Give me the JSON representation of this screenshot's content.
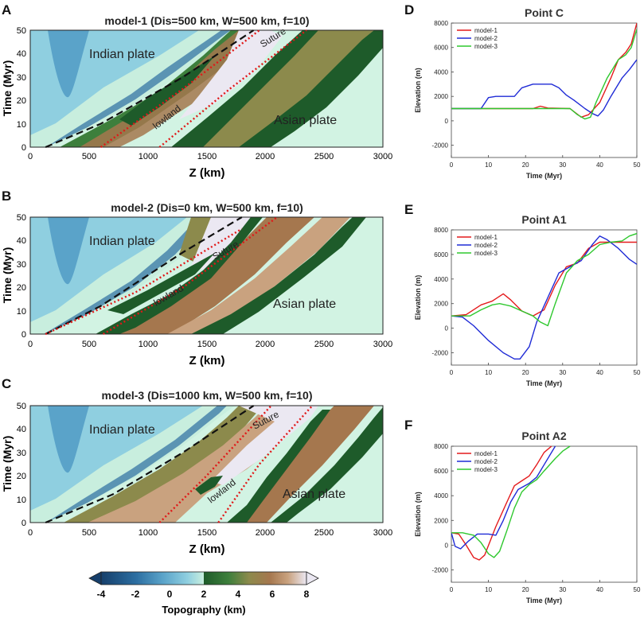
{
  "colors": {
    "deep_blue": "#2c6ea1",
    "mid_blue": "#5aa3c9",
    "light_blue": "#8fcfe0",
    "pale": "#c8eede",
    "land_pale": "#d2f3e3",
    "dark_green": "#1e5b2a",
    "green": "#3d7f3c",
    "olive": "#8c8a4c",
    "brown": "#a5774e",
    "tan": "#c9a27f",
    "snow": "#ebe8f2",
    "red_line": "#e01818",
    "black_line": "#111111",
    "series_red": "#e41a1c",
    "series_blue": "#1f2bd6",
    "series_green": "#2ec82e"
  },
  "maps": [
    {
      "letter": "A",
      "title": "model-1 (Dis=500 km, W=500 km, f=10)",
      "labels": {
        "indian": "Indian plate",
        "asian": "Asian plate",
        "suture": "Suture",
        "lowland": "lowland"
      },
      "xlabel": "Z  (km)",
      "ylabel": "Time  (Myr)",
      "xticks": [
        "0",
        "500",
        "1000",
        "1500",
        "2000",
        "2500",
        "3000"
      ],
      "yticks": [
        "0",
        "10",
        "20",
        "30",
        "40",
        "50"
      ]
    },
    {
      "letter": "B",
      "title": "model-2 (Dis=0 km, W=500 km, f=10)",
      "labels": {
        "indian": "Indian plate",
        "asian": "Asian plate",
        "suture": "Suture",
        "lowland": "lowland"
      },
      "xlabel": "Z  (km)",
      "ylabel": "Time  (Myr)",
      "xticks": [
        "0",
        "500",
        "1000",
        "1500",
        "2000",
        "2500",
        "3000"
      ],
      "yticks": [
        "0",
        "10",
        "20",
        "30",
        "40",
        "50"
      ]
    },
    {
      "letter": "C",
      "title": "model-3 (Dis=1000 km, W=500 km, f=10)",
      "labels": {
        "indian": "Indian plate",
        "asian": "Asian plate",
        "suture": "Suture",
        "lowland": "lowland"
      },
      "xlabel": "Z  (km)",
      "ylabel": "Time  (Myr)",
      "xticks": [
        "0",
        "500",
        "1000",
        "1500",
        "2000",
        "2500",
        "3000"
      ],
      "yticks": [
        "0",
        "10",
        "20",
        "30",
        "40",
        "50"
      ]
    }
  ],
  "colorbar": {
    "label": "Topography (km)",
    "ticks": [
      "-4",
      "-2",
      "0",
      "2",
      "4",
      "6",
      "8"
    ]
  },
  "chart_data": [
    {
      "panel": "A",
      "type": "heatmap",
      "title": "model-1 (Dis=500 km, W=500 km, f=10)",
      "xlabel": "Z  (km)",
      "ylabel": "Time  (Myr)",
      "xlim": [
        0,
        3000
      ],
      "ylim": [
        0,
        50
      ],
      "colorbar": {
        "label": "Topography (km)",
        "range": [
          -4,
          8
        ]
      },
      "boundaries": {
        "suture": [
          [
            130,
            0
          ],
          [
            600,
            10
          ],
          [
            1300,
            30
          ],
          [
            1900,
            50
          ]
        ],
        "red_left": [
          [
            600,
            0
          ],
          [
            1300,
            25
          ],
          [
            1950,
            50
          ]
        ],
        "red_right": [
          [
            1100,
            0
          ],
          [
            1700,
            25
          ],
          [
            2350,
            50
          ]
        ]
      }
    },
    {
      "panel": "B",
      "type": "heatmap",
      "title": "model-2 (Dis=0 km, W=500 km, f=10)",
      "xlabel": "Z  (km)",
      "ylabel": "Time  (Myr)",
      "xlim": [
        0,
        3000
      ],
      "ylim": [
        0,
        50
      ],
      "colorbar": {
        "label": "Topography (km)",
        "range": [
          -4,
          8
        ]
      },
      "boundaries": {
        "suture": [
          [
            130,
            0
          ],
          [
            600,
            12
          ],
          [
            1300,
            35
          ],
          [
            1800,
            50
          ]
        ],
        "red_left": [
          [
            130,
            0
          ],
          [
            900,
            18
          ],
          [
            1800,
            45
          ]
        ],
        "red_right": [
          [
            620,
            0
          ],
          [
            1300,
            20
          ],
          [
            2100,
            50
          ]
        ]
      }
    },
    {
      "panel": "C",
      "type": "heatmap",
      "title": "model-3 (Dis=1000 km, W=500 km, f=10)",
      "xlabel": "Z  (km)",
      "ylabel": "Time  (Myr)",
      "xlim": [
        0,
        3000
      ],
      "ylim": [
        0,
        50
      ],
      "colorbar": {
        "label": "Topography (km)",
        "range": [
          -4,
          8
        ]
      },
      "boundaries": {
        "suture": [
          [
            130,
            0
          ],
          [
            700,
            12
          ],
          [
            1300,
            30
          ],
          [
            1900,
            50
          ]
        ],
        "red_left": [
          [
            1100,
            0
          ],
          [
            1500,
            20
          ],
          [
            2050,
            50
          ]
        ],
        "red_right": [
          [
            1600,
            0
          ],
          [
            1950,
            25
          ],
          [
            2400,
            50
          ]
        ]
      }
    },
    {
      "panel": "D",
      "type": "line",
      "title": "Point C",
      "xlabel": "Time (Myr)",
      "ylabel": "Elevation (m)",
      "xlim": [
        0,
        50
      ],
      "ylim": [
        -3000,
        8000
      ],
      "xticks": [
        0,
        10,
        20,
        30,
        40,
        50
      ],
      "yticks": [
        -2000,
        0,
        2000,
        4000,
        6000,
        8000
      ],
      "series": [
        {
          "name": "model-1",
          "color": "#e41a1c",
          "points": [
            [
              0,
              1000
            ],
            [
              22,
              1000
            ],
            [
              24,
              1200
            ],
            [
              26,
              1050
            ],
            [
              32,
              1000
            ],
            [
              35,
              300
            ],
            [
              37,
              500
            ],
            [
              40,
              1500
            ],
            [
              43,
              3500
            ],
            [
              45,
              5000
            ],
            [
              47,
              5600
            ],
            [
              48.5,
              6300
            ],
            [
              50,
              8000
            ]
          ]
        },
        {
          "name": "model-2",
          "color": "#1f2bd6",
          "points": [
            [
              0,
              1000
            ],
            [
              8,
              1000
            ],
            [
              10,
              1900
            ],
            [
              12,
              2000
            ],
            [
              17,
              2000
            ],
            [
              19,
              2700
            ],
            [
              22,
              3000
            ],
            [
              27,
              3000
            ],
            [
              29,
              2700
            ],
            [
              31,
              2100
            ],
            [
              33,
              1700
            ],
            [
              36,
              1000
            ],
            [
              38,
              600
            ],
            [
              39.5,
              400
            ],
            [
              41,
              900
            ],
            [
              43,
              2000
            ],
            [
              46,
              3500
            ],
            [
              48,
              4200
            ],
            [
              50,
              5000
            ]
          ]
        },
        {
          "name": "model-3",
          "color": "#2ec82e",
          "points": [
            [
              0,
              1000
            ],
            [
              32,
              1000
            ],
            [
              34,
              500
            ],
            [
              36,
              150
            ],
            [
              37.5,
              300
            ],
            [
              39,
              1500
            ],
            [
              42,
              3500
            ],
            [
              45,
              5000
            ],
            [
              47,
              5400
            ],
            [
              48.5,
              6000
            ],
            [
              50,
              7500
            ]
          ]
        }
      ]
    },
    {
      "panel": "E",
      "type": "line",
      "title": "Point A1",
      "xlabel": "Time (Myr)",
      "ylabel": "Elevation (m)",
      "xlim": [
        0,
        50
      ],
      "ylim": [
        -3000,
        8000
      ],
      "xticks": [
        0,
        10,
        20,
        30,
        40,
        50
      ],
      "yticks": [
        -2000,
        0,
        2000,
        4000,
        6000,
        8000
      ],
      "series": [
        {
          "name": "model-1",
          "color": "#e41a1c",
          "points": [
            [
              0,
              1000
            ],
            [
              4,
              1100
            ],
            [
              8,
              1900
            ],
            [
              11,
              2200
            ],
            [
              14,
              2800
            ],
            [
              16,
              2300
            ],
            [
              19,
              1400
            ],
            [
              22,
              1000
            ],
            [
              25,
              1500
            ],
            [
              28,
              3500
            ],
            [
              31,
              5000
            ],
            [
              34,
              5300
            ],
            [
              37,
              6500
            ],
            [
              40,
              7000
            ],
            [
              45,
              7000
            ],
            [
              50,
              7000
            ]
          ]
        },
        {
          "name": "model-2",
          "color": "#1f2bd6",
          "points": [
            [
              0,
              1000
            ],
            [
              3,
              900
            ],
            [
              6,
              200
            ],
            [
              10,
              -1000
            ],
            [
              14,
              -2000
            ],
            [
              17,
              -2500
            ],
            [
              18.5,
              -2500
            ],
            [
              21,
              -1500
            ],
            [
              23,
              500
            ],
            [
              26,
              2500
            ],
            [
              29,
              4500
            ],
            [
              32,
              5000
            ],
            [
              35,
              5500
            ],
            [
              38,
              6800
            ],
            [
              40,
              7500
            ],
            [
              42,
              7200
            ],
            [
              45,
              6500
            ],
            [
              48,
              5600
            ],
            [
              50,
              5200
            ]
          ]
        },
        {
          "name": "model-3",
          "color": "#2ec82e",
          "points": [
            [
              0,
              1000
            ],
            [
              5,
              1000
            ],
            [
              8,
              1500
            ],
            [
              11,
              1900
            ],
            [
              13,
              2000
            ],
            [
              16,
              1800
            ],
            [
              19,
              1400
            ],
            [
              22,
              1000
            ],
            [
              24,
              500
            ],
            [
              26,
              200
            ],
            [
              28,
              2000
            ],
            [
              31,
              4500
            ],
            [
              34,
              5500
            ],
            [
              37,
              6000
            ],
            [
              40,
              6800
            ],
            [
              43,
              7000
            ],
            [
              46,
              7100
            ],
            [
              48,
              7500
            ],
            [
              50,
              7700
            ]
          ]
        }
      ]
    },
    {
      "panel": "F",
      "type": "line",
      "title": "Point A2",
      "xlabel": "Time (Myr)",
      "ylabel": "Elevation (m)",
      "xlim": [
        0,
        50
      ],
      "ylim": [
        -3000,
        8000
      ],
      "xticks": [
        0,
        10,
        20,
        30,
        40,
        50
      ],
      "yticks": [
        -2000,
        0,
        2000,
        4000,
        6000,
        8000
      ],
      "series": [
        {
          "name": "model-1",
          "color": "#e41a1c",
          "points": [
            [
              0,
              1000
            ],
            [
              2,
              900
            ],
            [
              4,
              0
            ],
            [
              6,
              -1000
            ],
            [
              7.5,
              -1200
            ],
            [
              9,
              -800
            ],
            [
              12,
              1500
            ],
            [
              15,
              3500
            ],
            [
              17,
              4800
            ],
            [
              19,
              5200
            ],
            [
              21,
              5600
            ],
            [
              23,
              6500
            ],
            [
              25,
              7500
            ],
            [
              27,
              8000
            ]
          ]
        },
        {
          "name": "model-2",
          "color": "#1f2bd6",
          "points": [
            [
              0,
              1000
            ],
            [
              1,
              -100
            ],
            [
              2.5,
              -300
            ],
            [
              4.5,
              300
            ],
            [
              7,
              900
            ],
            [
              10,
              900
            ],
            [
              12,
              800
            ],
            [
              14,
              2000
            ],
            [
              16,
              3500
            ],
            [
              18,
              4500
            ],
            [
              21,
              5000
            ],
            [
              23,
              5500
            ],
            [
              25,
              6500
            ],
            [
              28,
              8000
            ]
          ]
        },
        {
          "name": "model-3",
          "color": "#2ec82e",
          "points": [
            [
              0,
              1000
            ],
            [
              3,
              1000
            ],
            [
              6,
              800
            ],
            [
              8,
              200
            ],
            [
              10,
              -700
            ],
            [
              11.5,
              -1000
            ],
            [
              13,
              -500
            ],
            [
              15,
              1200
            ],
            [
              17,
              3000
            ],
            [
              19,
              4300
            ],
            [
              21,
              4900
            ],
            [
              23,
              5300
            ],
            [
              25,
              6000
            ],
            [
              28,
              7000
            ],
            [
              30,
              7600
            ],
            [
              32,
              8000
            ]
          ]
        }
      ]
    }
  ]
}
